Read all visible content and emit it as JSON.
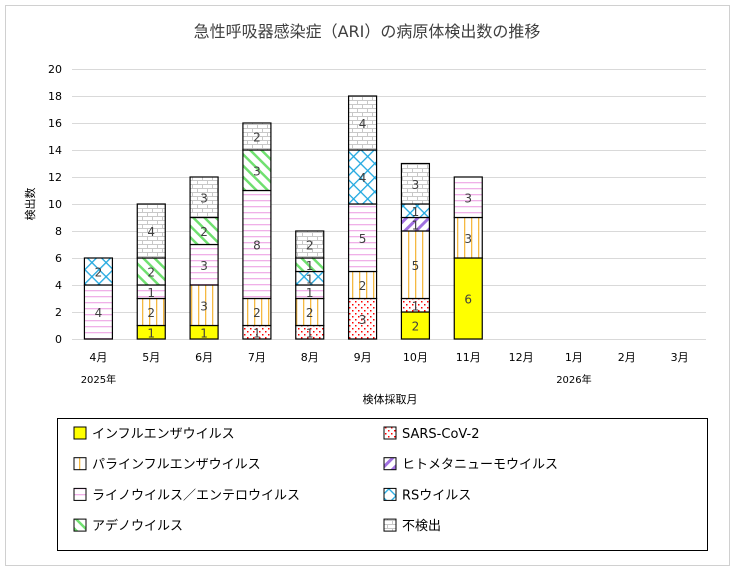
{
  "chart_data": {
    "type": "bar",
    "stacked": true,
    "title": "急性呼吸器感染症（ARI）の病原体検出数の推移",
    "xlabel": "検体採取月",
    "ylabel": "検出数",
    "ylim": [
      0,
      20
    ],
    "yticks": [
      0,
      2,
      4,
      6,
      8,
      10,
      12,
      14,
      16,
      18,
      20
    ],
    "grid": true,
    "legend_position": "bottom",
    "categories": [
      "4月",
      "5月",
      "6月",
      "7月",
      "8月",
      "9月",
      "10月",
      "11月",
      "12月",
      "1月",
      "2月",
      "3月"
    ],
    "year_labels": [
      {
        "category": "4月",
        "label": "2025年"
      },
      {
        "category": "1月",
        "label": "2026年"
      }
    ],
    "series": [
      {
        "name": "インフルエンザウイルス",
        "color": "#ffff00",
        "pattern": "solid",
        "values": [
          0,
          1,
          1,
          0,
          0,
          0,
          2,
          6,
          0,
          0,
          0,
          0
        ]
      },
      {
        "name": "SARS-CoV-2",
        "color": "#ff0000",
        "pattern": "dots",
        "values": [
          0,
          0,
          0,
          1,
          1,
          3,
          1,
          0,
          0,
          0,
          0,
          0
        ]
      },
      {
        "name": "パラインフルエンザウイルス",
        "color": "#f5b942",
        "pattern": "vertical",
        "values": [
          0,
          2,
          3,
          2,
          2,
          2,
          5,
          3,
          0,
          0,
          0,
          0
        ]
      },
      {
        "name": "ヒトメタニューモウイルス",
        "color": "#a070e0",
        "pattern": "diagonal",
        "values": [
          0,
          0,
          0,
          0,
          0,
          0,
          1,
          0,
          0,
          0,
          0,
          0
        ]
      },
      {
        "name": "ライノウイルス／エンテロウイルス",
        "color": "#f0b0e8",
        "pattern": "horizontal",
        "values": [
          4,
          1,
          3,
          8,
          1,
          5,
          0,
          3,
          0,
          0,
          0,
          0
        ]
      },
      {
        "name": "RSウイルス",
        "color": "#20a8e0",
        "pattern": "cross",
        "values": [
          2,
          0,
          0,
          0,
          1,
          4,
          1,
          0,
          0,
          0,
          0,
          0
        ]
      },
      {
        "name": "アデノウイルス",
        "color": "#70e070",
        "pattern": "diagonal",
        "values": [
          0,
          2,
          2,
          3,
          1,
          0,
          0,
          0,
          0,
          0,
          0,
          0
        ]
      },
      {
        "name": "不検出",
        "color": "#c8c8c8",
        "pattern": "brick",
        "values": [
          0,
          4,
          3,
          2,
          2,
          4,
          3,
          0,
          0,
          0,
          0,
          0
        ]
      }
    ]
  }
}
